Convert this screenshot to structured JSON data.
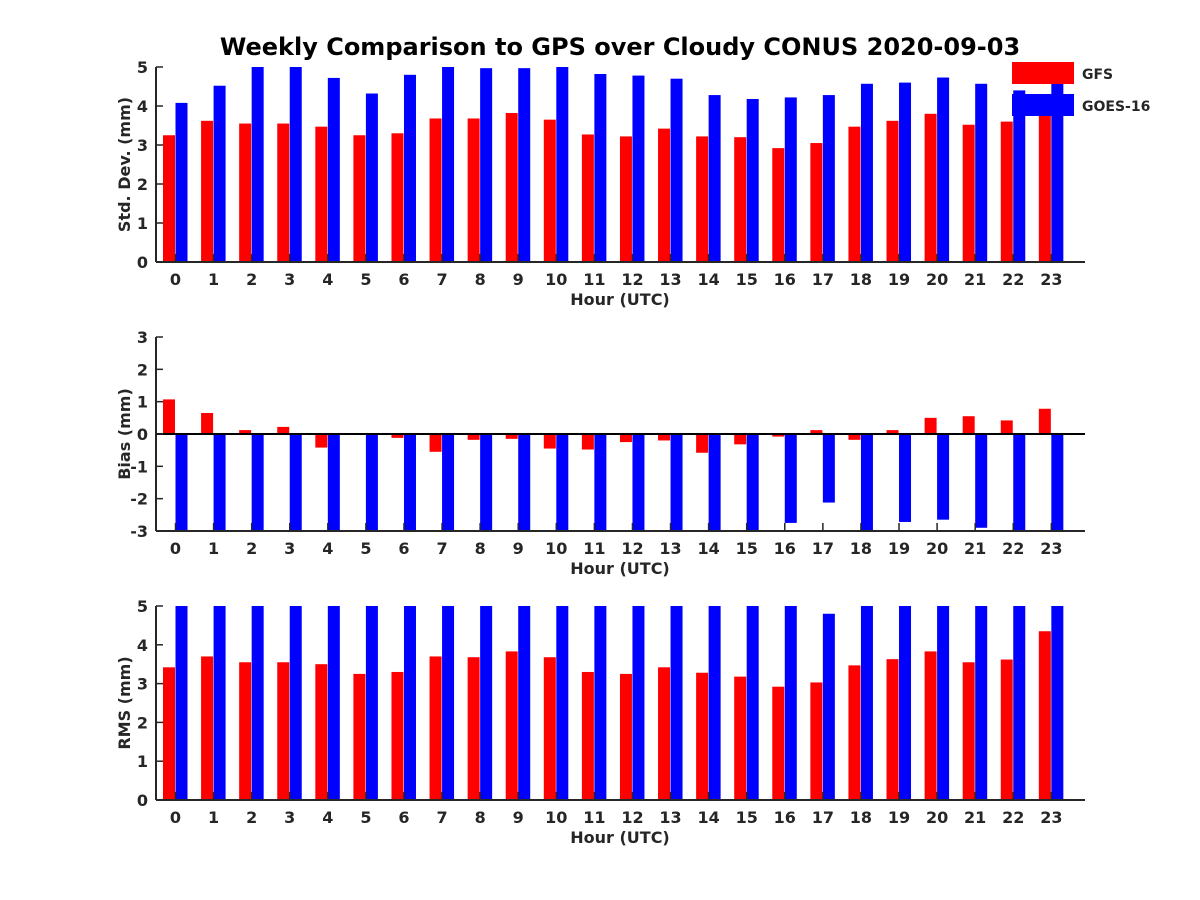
{
  "figure": {
    "title": "Weekly Comparison to GPS over Cloudy CONUS 2020-09-03",
    "legend": [
      {
        "label": "GFS",
        "color": "#ff0000"
      },
      {
        "label": "GOES-16",
        "color": "#0000ff"
      }
    ],
    "legend_position": "top-right"
  },
  "chart_data": [
    {
      "type": "bar",
      "ylabel": "Std. Dev. (mm)",
      "xlabel": "Hour (UTC)",
      "ylim": [
        0,
        5
      ],
      "yticks": [
        0,
        1,
        2,
        3,
        4,
        5
      ],
      "categories": [
        "0",
        "1",
        "2",
        "3",
        "4",
        "5",
        "6",
        "7",
        "8",
        "9",
        "10",
        "11",
        "12",
        "13",
        "14",
        "15",
        "16",
        "17",
        "18",
        "19",
        "20",
        "21",
        "22",
        "23"
      ],
      "series": [
        {
          "name": "GFS",
          "color": "#ff0000",
          "values": [
            3.25,
            3.62,
            3.55,
            3.55,
            3.47,
            3.25,
            3.3,
            3.68,
            3.68,
            3.82,
            3.65,
            3.27,
            3.22,
            3.42,
            3.22,
            3.2,
            2.92,
            3.05,
            3.47,
            3.62,
            3.8,
            3.52,
            3.6,
            4.05
          ]
        },
        {
          "name": "GOES-16",
          "color": "#0000ff",
          "values": [
            4.08,
            4.52,
            5.0,
            5.0,
            4.72,
            4.32,
            4.8,
            5.0,
            4.97,
            4.97,
            5.0,
            4.82,
            4.78,
            4.7,
            4.28,
            4.18,
            4.22,
            4.28,
            4.57,
            4.6,
            4.73,
            4.57,
            4.4,
            4.85
          ]
        }
      ]
    },
    {
      "type": "bar",
      "ylabel": "Bias (mm)",
      "xlabel": "Hour (UTC)",
      "ylim": [
        -3,
        3
      ],
      "yticks": [
        -3,
        -2,
        -1,
        0,
        1,
        2,
        3
      ],
      "categories": [
        "0",
        "1",
        "2",
        "3",
        "4",
        "5",
        "6",
        "7",
        "8",
        "9",
        "10",
        "11",
        "12",
        "13",
        "14",
        "15",
        "16",
        "17",
        "18",
        "19",
        "20",
        "21",
        "22",
        "23"
      ],
      "series": [
        {
          "name": "GFS",
          "color": "#ff0000",
          "values": [
            1.07,
            0.65,
            0.12,
            0.22,
            -0.42,
            0.0,
            -0.12,
            -0.55,
            -0.18,
            -0.15,
            -0.45,
            -0.48,
            -0.25,
            -0.2,
            -0.58,
            -0.32,
            -0.08,
            0.12,
            -0.18,
            0.12,
            0.5,
            0.55,
            0.42,
            0.78
          ]
        },
        {
          "name": "GOES-16",
          "color": "#0000ff",
          "values": [
            -3.0,
            -3.0,
            -3.0,
            -3.0,
            -3.0,
            -3.0,
            -3.0,
            -3.0,
            -3.0,
            -3.0,
            -3.0,
            -3.0,
            -3.0,
            -3.0,
            -3.0,
            -3.0,
            -2.75,
            -2.12,
            -3.0,
            -2.72,
            -2.65,
            -2.9,
            -3.0,
            -3.0
          ]
        }
      ]
    },
    {
      "type": "bar",
      "ylabel": "RMS (mm)",
      "xlabel": "Hour (UTC)",
      "ylim": [
        0,
        5
      ],
      "yticks": [
        0,
        1,
        2,
        3,
        4,
        5
      ],
      "categories": [
        "0",
        "1",
        "2",
        "3",
        "4",
        "5",
        "6",
        "7",
        "8",
        "9",
        "10",
        "11",
        "12",
        "13",
        "14",
        "15",
        "16",
        "17",
        "18",
        "19",
        "20",
        "21",
        "22",
        "23"
      ],
      "series": [
        {
          "name": "GFS",
          "color": "#ff0000",
          "values": [
            3.42,
            3.7,
            3.55,
            3.55,
            3.5,
            3.25,
            3.3,
            3.7,
            3.68,
            3.83,
            3.68,
            3.3,
            3.25,
            3.42,
            3.28,
            3.18,
            2.92,
            3.03,
            3.47,
            3.63,
            3.83,
            3.55,
            3.62,
            4.35
          ]
        },
        {
          "name": "GOES-16",
          "color": "#0000ff",
          "values": [
            5.0,
            5.0,
            5.0,
            5.0,
            5.0,
            5.0,
            5.0,
            5.0,
            5.0,
            5.0,
            5.0,
            5.0,
            5.0,
            5.0,
            5.0,
            5.0,
            5.0,
            4.8,
            5.0,
            5.0,
            5.0,
            5.0,
            5.0,
            5.0
          ]
        }
      ]
    }
  ]
}
